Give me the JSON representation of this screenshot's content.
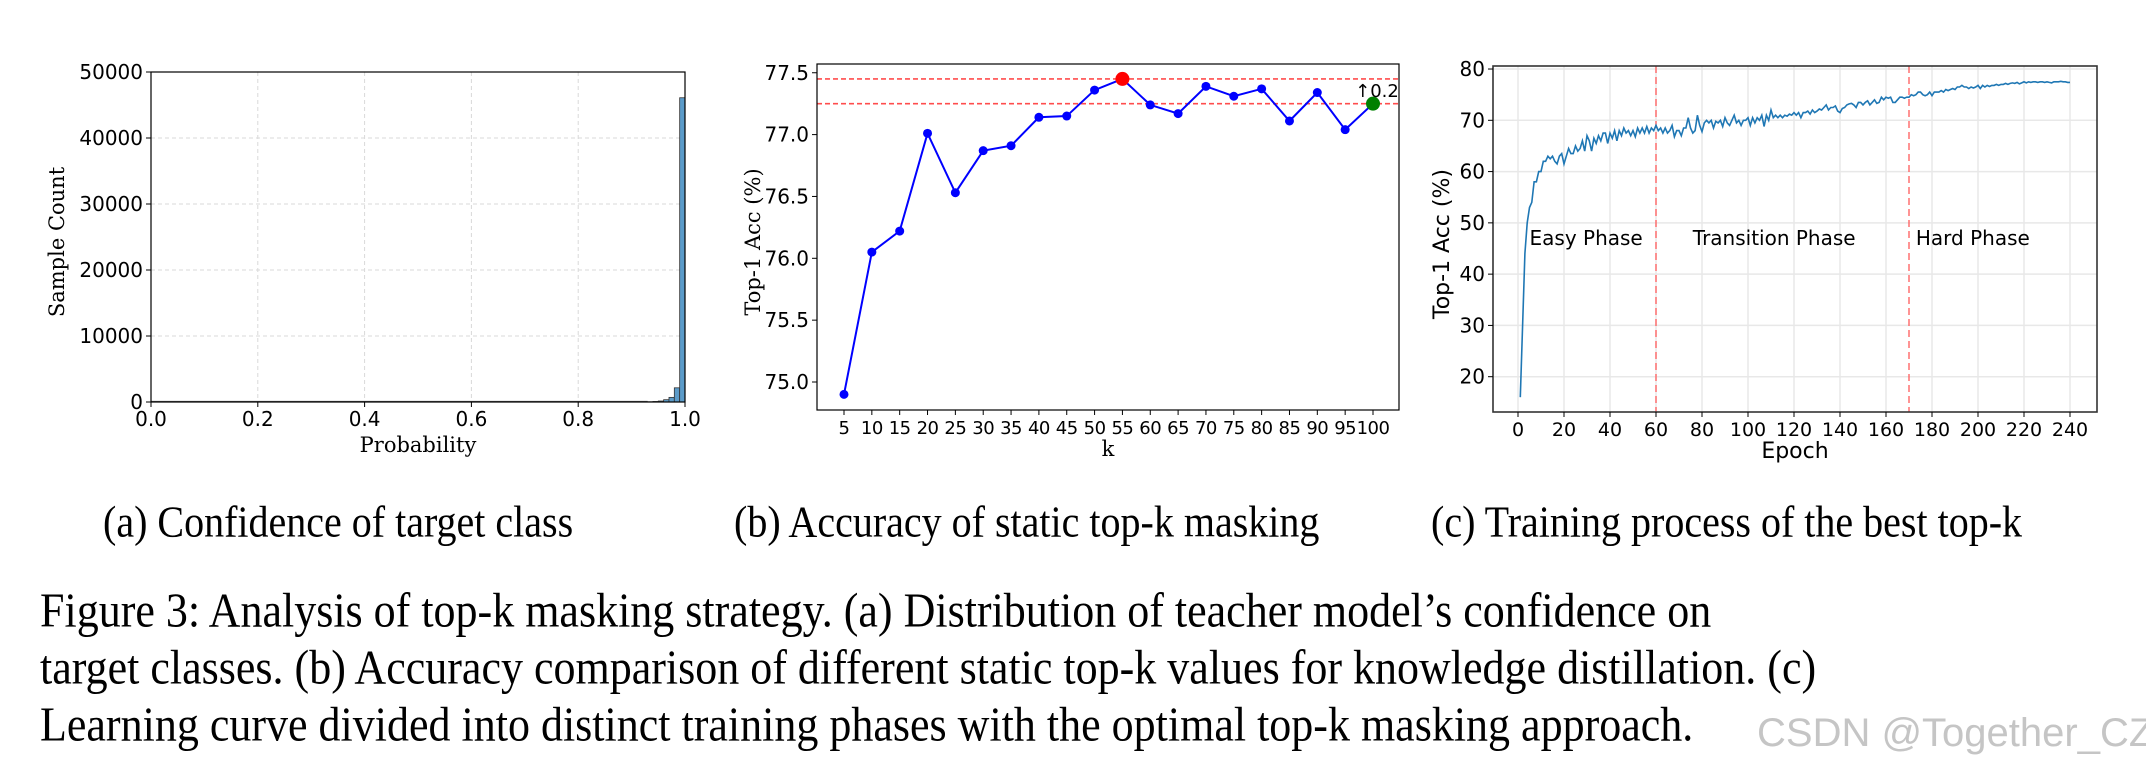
{
  "figure": {
    "subcaptions": {
      "a": "(a) Confidence of target class",
      "b": "(b) Accuracy of static top-k masking",
      "c": "(c) Training process of the best top-k"
    },
    "caption_lines": [
      "Figure 3:  Analysis of top-k masking strategy.  (a) Distribution of teacher model’s confidence on",
      "target classes. (b) Accuracy comparison of different static top-k values for knowledge distillation. (c)",
      "Learning curve divided into distinct training phases with the optimal top-k masking approach."
    ],
    "watermark": "CSDN @Together_CZ"
  },
  "colors": {
    "hist_bar": "#5b9bc9",
    "hist_edge": "#333333",
    "line_b": "#0000ff",
    "max_marker": "#ff0000",
    "k100_marker": "#008000",
    "ref_line": "#ff4d4d",
    "line_c": "#1f77b4",
    "phase_line": "#ff6666",
    "grid": "#d9d9d9"
  },
  "chart_data": [
    {
      "id": "a",
      "type": "bar",
      "title": "",
      "xlabel": "Probability",
      "ylabel": "Sample Count",
      "xlim": [
        0.0,
        1.0
      ],
      "ylim": [
        0,
        50000
      ],
      "xticks": [
        "0.0",
        "0.2",
        "0.4",
        "0.6",
        "0.8",
        "1.0"
      ],
      "yticks": [
        "0",
        "10000",
        "20000",
        "30000",
        "40000",
        "50000"
      ],
      "grid": true,
      "bin_width": 0.01,
      "bins": [
        {
          "x0": 0.93,
          "count": 40
        },
        {
          "x0": 0.94,
          "count": 80
        },
        {
          "x0": 0.95,
          "count": 150
        },
        {
          "x0": 0.96,
          "count": 350
        },
        {
          "x0": 0.97,
          "count": 700
        },
        {
          "x0": 0.98,
          "count": 2150
        },
        {
          "x0": 0.99,
          "count": 46100
        }
      ]
    },
    {
      "id": "b",
      "type": "line",
      "title": "",
      "xlabel": "k",
      "ylabel": "Top-1 Acc (%)",
      "categories": [
        "5",
        "10",
        "15",
        "20",
        "25",
        "30",
        "35",
        "40",
        "45",
        "50",
        "55",
        "60",
        "65",
        "70",
        "75",
        "80",
        "85",
        "90",
        "95",
        "100"
      ],
      "x": [
        5,
        10,
        15,
        20,
        25,
        30,
        35,
        40,
        45,
        50,
        55,
        60,
        65,
        70,
        75,
        80,
        85,
        90,
        95,
        100
      ],
      "values": [
        74.9,
        76.05,
        76.22,
        77.01,
        76.53,
        76.87,
        76.91,
        77.14,
        77.15,
        77.36,
        77.45,
        77.24,
        77.17,
        77.39,
        77.31,
        77.37,
        77.11,
        77.34,
        77.04,
        77.25
      ],
      "yticks": [
        "75.0",
        "75.5",
        "76.0",
        "76.5",
        "77.0",
        "77.5"
      ],
      "ylim": [
        74.8,
        77.58
      ],
      "grid": false,
      "reference_lines": [
        77.45,
        77.25
      ],
      "highlight": {
        "max_k": 55,
        "max_value": 77.45,
        "baseline_k": 100,
        "baseline_value": 77.25
      },
      "annotation": "↑0.2"
    },
    {
      "id": "c",
      "type": "line",
      "title": "",
      "xlabel": "Epoch",
      "ylabel": "Top-1 Acc (%)",
      "xticks": [
        "0",
        "20",
        "40",
        "60",
        "80",
        "100",
        "120",
        "140",
        "160",
        "180",
        "200",
        "220",
        "240"
      ],
      "yticks": [
        "20",
        "30",
        "40",
        "50",
        "60",
        "70",
        "80"
      ],
      "xlim": [
        -10,
        250
      ],
      "ylim": [
        13,
        80.5
      ],
      "grid": true,
      "phase_boundaries": [
        60,
        170
      ],
      "phase_labels": [
        {
          "label": "Easy Phase",
          "x": 5
        },
        {
          "label": "Transition Phase",
          "x": 76
        },
        {
          "label": "Hard Phase",
          "x": 173
        }
      ],
      "phase_label_y": 47,
      "series_points": [
        [
          1,
          16
        ],
        [
          2,
          30
        ],
        [
          3,
          44
        ],
        [
          4,
          50
        ],
        [
          5,
          53
        ],
        [
          6,
          54
        ],
        [
          7,
          58
        ],
        [
          8,
          58
        ],
        [
          9,
          60
        ],
        [
          10,
          60
        ],
        [
          11,
          62
        ],
        [
          12,
          62
        ],
        [
          13,
          63
        ],
        [
          14,
          62.5
        ],
        [
          15,
          63
        ],
        [
          16,
          62
        ],
        [
          17,
          61.5
        ],
        [
          18,
          63
        ],
        [
          19,
          63.5
        ],
        [
          20,
          61.5
        ],
        [
          21,
          63
        ],
        [
          22,
          64.5
        ],
        [
          23,
          63.5
        ],
        [
          24,
          63.5
        ],
        [
          25,
          65
        ],
        [
          26,
          64
        ],
        [
          27,
          64.5
        ],
        [
          28,
          66
        ],
        [
          29,
          64
        ],
        [
          30,
          67
        ],
        [
          31,
          66
        ],
        [
          32,
          64
        ],
        [
          33,
          66.5
        ],
        [
          34,
          65.5
        ],
        [
          35,
          67
        ],
        [
          36,
          66
        ],
        [
          37,
          67.5
        ],
        [
          38,
          67.5
        ],
        [
          39,
          65.5
        ],
        [
          40,
          67.5
        ],
        [
          41,
          66.5
        ],
        [
          42,
          68
        ],
        [
          43,
          66
        ],
        [
          44,
          68
        ],
        [
          45,
          67
        ],
        [
          46,
          68.5
        ],
        [
          47,
          67.5
        ],
        [
          48,
          68
        ],
        [
          49,
          67
        ],
        [
          50,
          68
        ],
        [
          51,
          66.8
        ],
        [
          52,
          68.5
        ],
        [
          53,
          67.5
        ],
        [
          54,
          68.5
        ],
        [
          55,
          67.5
        ],
        [
          56,
          68.8
        ],
        [
          57,
          67.5
        ],
        [
          58,
          68.5
        ],
        [
          59,
          68
        ],
        [
          60,
          69
        ],
        [
          61,
          68
        ],
        [
          62,
          68.5
        ],
        [
          63,
          67.5
        ],
        [
          64,
          68.5
        ],
        [
          65,
          67.5
        ],
        [
          66,
          68
        ],
        [
          67,
          69
        ],
        [
          68,
          66.8
        ],
        [
          69,
          68
        ],
        [
          70,
          68
        ],
        [
          71,
          67
        ],
        [
          72,
          68.5
        ],
        [
          73,
          68.5
        ],
        [
          74,
          70.5
        ],
        [
          75,
          68.5
        ],
        [
          76,
          67.5
        ],
        [
          77,
          68
        ],
        [
          78,
          71
        ],
        [
          79,
          69
        ],
        [
          80,
          67.8
        ],
        [
          81,
          69.5
        ],
        [
          82,
          70
        ],
        [
          83,
          69.5
        ],
        [
          84,
          70
        ],
        [
          85,
          68.5
        ],
        [
          86,
          69.8
        ],
        [
          87,
          69.5
        ],
        [
          88,
          70
        ],
        [
          89,
          68.8
        ],
        [
          90,
          70.5
        ],
        [
          91,
          69.5
        ],
        [
          92,
          69
        ],
        [
          93,
          70
        ],
        [
          94,
          71
        ],
        [
          95,
          69.5
        ],
        [
          96,
          70
        ],
        [
          97,
          69
        ],
        [
          98,
          70
        ],
        [
          99,
          70
        ],
        [
          100,
          70.5
        ],
        [
          101,
          69
        ],
        [
          102,
          70.5
        ],
        [
          103,
          69.5
        ],
        [
          104,
          70.5
        ],
        [
          105,
          70
        ],
        [
          106,
          71
        ],
        [
          107,
          68.8
        ],
        [
          108,
          71
        ],
        [
          109,
          70
        ],
        [
          110,
          72
        ],
        [
          111,
          70.5
        ],
        [
          112,
          71
        ],
        [
          113,
          70.5
        ],
        [
          114,
          71
        ],
        [
          115,
          70.5
        ],
        [
          116,
          71
        ],
        [
          117,
          70.8
        ],
        [
          118,
          71.2
        ],
        [
          119,
          71
        ],
        [
          120,
          71.5
        ],
        [
          121,
          71
        ],
        [
          122,
          71.5
        ],
        [
          123,
          70.5
        ],
        [
          124,
          71.5
        ],
        [
          125,
          71.5
        ],
        [
          126,
          71.8
        ],
        [
          127,
          71.2
        ],
        [
          128,
          72
        ],
        [
          129,
          71.5
        ],
        [
          130,
          71.8
        ],
        [
          131,
          72.2
        ],
        [
          132,
          72
        ],
        [
          133,
          72.5
        ],
        [
          134,
          73
        ],
        [
          135,
          72
        ],
        [
          136,
          72.5
        ],
        [
          137,
          72.5
        ],
        [
          138,
          72.8
        ],
        [
          139,
          71.8
        ],
        [
          140,
          71.5
        ],
        [
          141,
          72.3
        ],
        [
          142,
          72.5
        ],
        [
          143,
          73
        ],
        [
          144,
          73.2
        ],
        [
          145,
          73.3
        ],
        [
          146,
          73
        ],
        [
          147,
          72.5
        ],
        [
          148,
          73.5
        ],
        [
          149,
          73.5
        ],
        [
          150,
          73
        ],
        [
          151,
          73.5
        ],
        [
          152,
          73.8
        ],
        [
          153,
          73
        ],
        [
          154,
          73.5
        ],
        [
          155,
          74
        ],
        [
          156,
          73.3
        ],
        [
          157,
          73.5
        ],
        [
          158,
          74.5
        ],
        [
          159,
          74
        ],
        [
          160,
          74.5
        ],
        [
          161,
          74.3
        ],
        [
          162,
          74.5
        ],
        [
          163,
          73.5
        ],
        [
          164,
          73.5
        ],
        [
          165,
          74
        ],
        [
          166,
          74.5
        ],
        [
          167,
          74.5
        ],
        [
          168,
          74.3
        ],
        [
          169,
          74.5
        ],
        [
          170,
          74.5
        ],
        [
          171,
          75
        ],
        [
          172,
          74.8
        ],
        [
          173,
          75
        ],
        [
          174,
          75.5
        ],
        [
          175,
          75.5
        ],
        [
          176,
          75
        ],
        [
          177,
          74.8
        ],
        [
          178,
          75
        ],
        [
          179,
          75.5
        ],
        [
          180,
          74.8
        ],
        [
          181,
          75.5
        ],
        [
          182,
          75.5
        ],
        [
          183,
          75.5
        ],
        [
          184,
          75.8
        ],
        [
          185,
          75.5
        ],
        [
          186,
          76
        ],
        [
          187,
          75.8
        ],
        [
          188,
          76
        ],
        [
          189,
          76.2
        ],
        [
          190,
          76
        ],
        [
          191,
          76.5
        ],
        [
          192,
          76.5
        ],
        [
          193,
          76.8
        ],
        [
          194,
          76.5
        ],
        [
          195,
          76.5
        ],
        [
          196,
          76.2
        ],
        [
          197,
          76.5
        ],
        [
          198,
          76.3
        ],
        [
          199,
          76.5
        ],
        [
          200,
          76.8
        ],
        [
          201,
          76.2
        ],
        [
          202,
          76.8
        ],
        [
          203,
          76.5
        ],
        [
          204,
          76.8
        ],
        [
          205,
          76.6
        ],
        [
          206,
          76.8
        ],
        [
          207,
          76.8
        ],
        [
          208,
          77
        ],
        [
          209,
          76.8
        ],
        [
          210,
          77
        ],
        [
          211,
          77
        ],
        [
          212,
          77.2
        ],
        [
          213,
          77
        ],
        [
          214,
          77.2
        ],
        [
          215,
          77.3
        ],
        [
          216,
          77.2
        ],
        [
          217,
          77.4
        ],
        [
          218,
          77.1
        ],
        [
          219,
          77.3
        ],
        [
          220,
          77.5
        ],
        [
          221,
          77.3
        ],
        [
          222,
          77.5
        ],
        [
          223,
          77.4
        ],
        [
          224,
          77.5
        ],
        [
          225,
          77.5
        ],
        [
          226,
          77.4
        ],
        [
          227,
          77.5
        ],
        [
          228,
          77.5
        ],
        [
          229,
          77.4
        ],
        [
          230,
          77.5
        ],
        [
          231,
          77.4
        ],
        [
          232,
          77.3
        ],
        [
          233,
          77.5
        ],
        [
          234,
          77.5
        ],
        [
          235,
          77.5
        ],
        [
          236,
          77.6
        ],
        [
          237,
          77.5
        ],
        [
          238,
          77.5
        ],
        [
          239,
          77.4
        ],
        [
          240,
          77.4
        ]
      ]
    }
  ]
}
